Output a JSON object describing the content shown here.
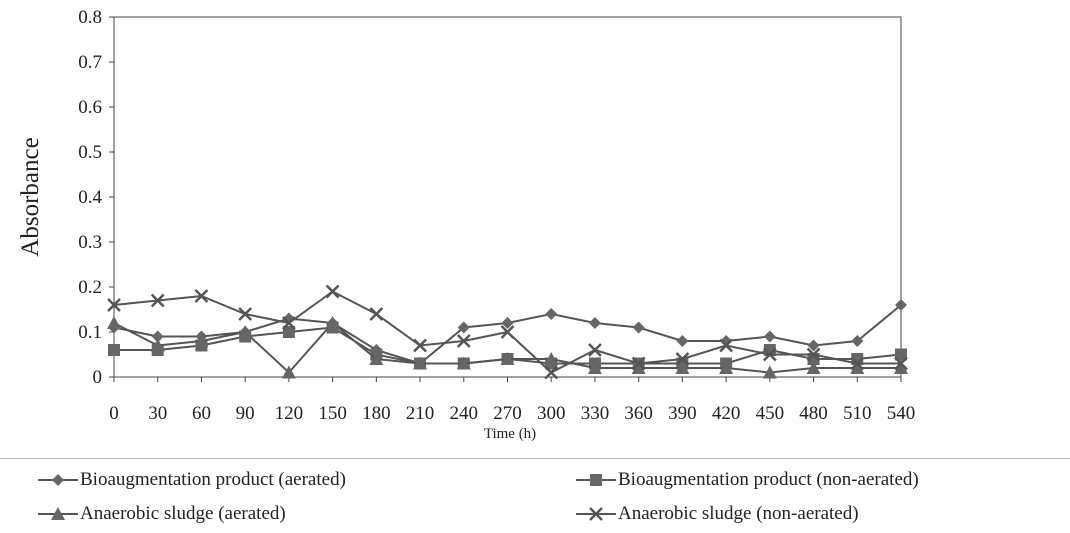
{
  "chart_data": {
    "type": "line",
    "title": "",
    "xlabel": "Time (h)",
    "ylabel": "Absorbance",
    "x": [
      0,
      30,
      60,
      90,
      120,
      150,
      180,
      210,
      240,
      270,
      300,
      330,
      360,
      390,
      420,
      450,
      480,
      510,
      540
    ],
    "ylim": [
      0,
      0.8
    ],
    "yticks": [
      "0",
      "0.1",
      "0.2",
      "0.3",
      "0.4",
      "0.5",
      "0.6",
      "0.7",
      "0.8"
    ],
    "grid": false,
    "legend_position": "bottom",
    "series": [
      {
        "name": "Bioaugmentation product (aerated)",
        "marker": "diamond",
        "color": "#555555",
        "values": [
          0.11,
          0.09,
          0.09,
          0.1,
          0.13,
          0.12,
          0.06,
          0.03,
          0.11,
          0.12,
          0.14,
          0.12,
          0.11,
          0.08,
          0.08,
          0.09,
          0.07,
          0.08,
          0.16
        ]
      },
      {
        "name": "Bioaugmentation product (non-aerated)",
        "marker": "square",
        "color": "#555555",
        "values": [
          0.06,
          0.06,
          0.07,
          0.09,
          0.1,
          0.11,
          0.05,
          0.03,
          0.03,
          0.04,
          0.03,
          0.03,
          0.03,
          0.03,
          0.03,
          0.06,
          0.04,
          0.04,
          0.05
        ]
      },
      {
        "name": "Anaerobic sludge (aerated)",
        "marker": "triangle",
        "color": "#555555",
        "values": [
          0.12,
          0.07,
          0.08,
          0.1,
          0.01,
          0.12,
          0.04,
          0.03,
          0.03,
          0.04,
          0.04,
          0.02,
          0.02,
          0.02,
          0.02,
          0.01,
          0.02,
          0.02,
          0.02
        ]
      },
      {
        "name": "Anaerobic sludge (non-aerated)",
        "marker": "x",
        "color": "#555555",
        "values": [
          0.16,
          0.17,
          0.18,
          0.14,
          0.12,
          0.19,
          0.14,
          0.07,
          0.08,
          0.1,
          0.01,
          0.06,
          0.03,
          0.04,
          0.07,
          0.05,
          0.05,
          0.03,
          0.03
        ]
      }
    ]
  }
}
